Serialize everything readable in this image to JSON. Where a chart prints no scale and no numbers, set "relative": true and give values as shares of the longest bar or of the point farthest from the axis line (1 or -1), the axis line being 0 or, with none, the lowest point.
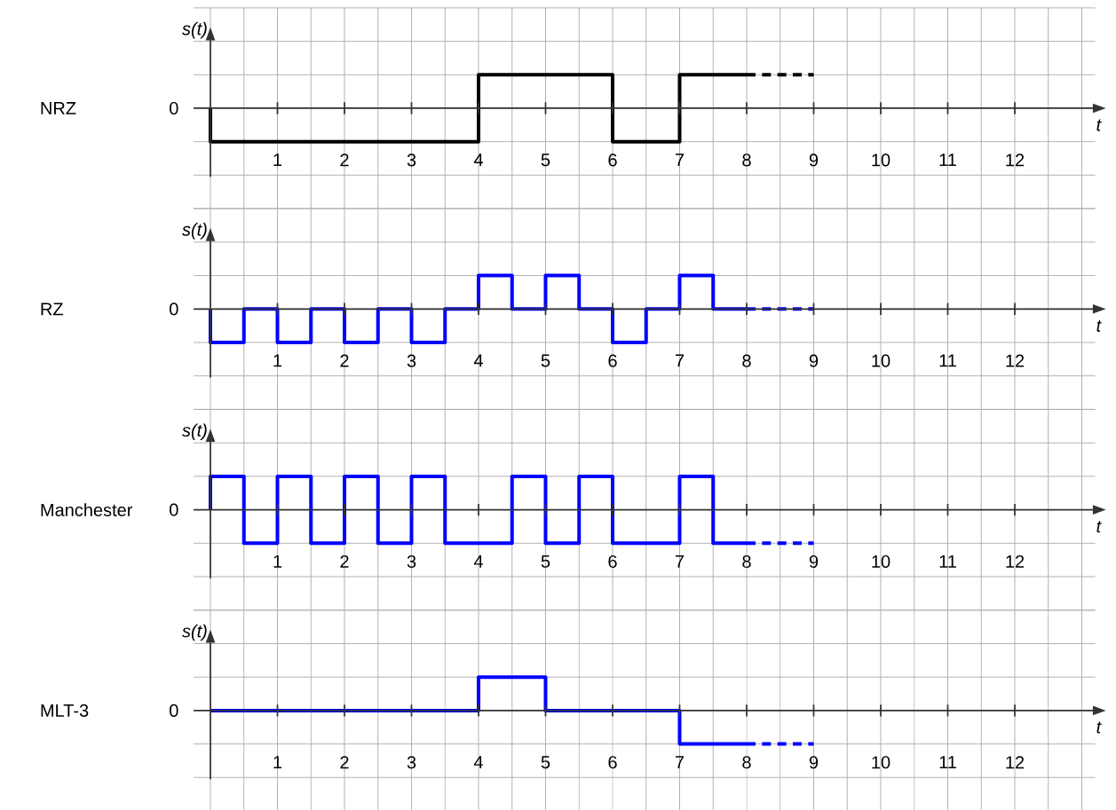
{
  "chart_data": [
    {
      "type": "step",
      "ylabel": "s(t)",
      "xlabel": "t",
      "xlim": [
        -0.25,
        13.2
      ],
      "xticks": [
        1,
        2,
        3,
        4,
        5,
        6,
        7,
        8,
        9,
        10,
        11,
        12
      ],
      "relative": true,
      "grid": true,
      "marker": "none",
      "annotations": [
        "NRZ",
        "0"
      ],
      "series": [
        {
          "color": "#000000",
          "line_style": "solid",
          "x": [
            0,
            0,
            4,
            6,
            7,
            8
          ],
          "values": [
            0,
            -1,
            1,
            -1,
            1,
            1
          ]
        },
        {
          "color": "#000000",
          "line_style": "dashed",
          "x": [
            8,
            9
          ],
          "values": [
            1,
            1
          ]
        }
      ]
    },
    {
      "type": "step",
      "ylabel": "s(t)",
      "xlabel": "t",
      "xlim": [
        -0.25,
        13.2
      ],
      "xticks": [
        1,
        2,
        3,
        4,
        5,
        6,
        7,
        8,
        9,
        10,
        11,
        12
      ],
      "relative": true,
      "grid": true,
      "marker": "none",
      "annotations": [
        "RZ",
        "0"
      ],
      "series": [
        {
          "color": "#0000ff",
          "line_style": "solid",
          "x": [
            0,
            0,
            0.5,
            1,
            1.5,
            2,
            2.5,
            3,
            3.5,
            4,
            4.5,
            5,
            5.5,
            6,
            6.5,
            7,
            7.5,
            8
          ],
          "values": [
            0,
            -1,
            0,
            -1,
            0,
            -1,
            0,
            -1,
            0,
            1,
            0,
            1,
            0,
            -1,
            0,
            1,
            0,
            0
          ]
        },
        {
          "color": "#0000ff",
          "line_style": "dashed",
          "x": [
            8,
            9
          ],
          "values": [
            0,
            0
          ]
        }
      ]
    },
    {
      "type": "step",
      "ylabel": "s(t)",
      "xlabel": "t",
      "xlim": [
        -0.25,
        13.2
      ],
      "xticks": [
        1,
        2,
        3,
        4,
        5,
        6,
        7,
        8,
        9,
        10,
        11,
        12
      ],
      "relative": true,
      "grid": true,
      "marker": "none",
      "annotations": [
        "Manchester",
        "0"
      ],
      "series": [
        {
          "color": "#0000ff",
          "line_style": "solid",
          "x": [
            0,
            0,
            0.5,
            1,
            1.5,
            2,
            2.5,
            3,
            3.5,
            4.5,
            5,
            5.5,
            6,
            7,
            7.5,
            8
          ],
          "values": [
            0,
            1,
            -1,
            1,
            -1,
            1,
            -1,
            1,
            -1,
            1,
            -1,
            1,
            -1,
            1,
            -1,
            -1
          ]
        },
        {
          "color": "#0000ff",
          "line_style": "dashed",
          "x": [
            8,
            9
          ],
          "values": [
            -1,
            -1
          ]
        }
      ]
    },
    {
      "type": "step",
      "ylabel": "s(t)",
      "xlabel": "t",
      "xlim": [
        -0.25,
        13.2
      ],
      "xticks": [
        1,
        2,
        3,
        4,
        5,
        6,
        7,
        8,
        9,
        10,
        11,
        12
      ],
      "relative": true,
      "grid": true,
      "marker": "none",
      "annotations": [
        "MLT-3",
        "0"
      ],
      "series": [
        {
          "color": "#0000ff",
          "line_style": "solid",
          "x": [
            0,
            4,
            5,
            7,
            8
          ],
          "values": [
            0,
            1,
            0,
            -1,
            -1
          ]
        },
        {
          "color": "#0000ff",
          "line_style": "dashed",
          "x": [
            8,
            9
          ],
          "values": [
            -1,
            -1
          ]
        }
      ]
    }
  ]
}
